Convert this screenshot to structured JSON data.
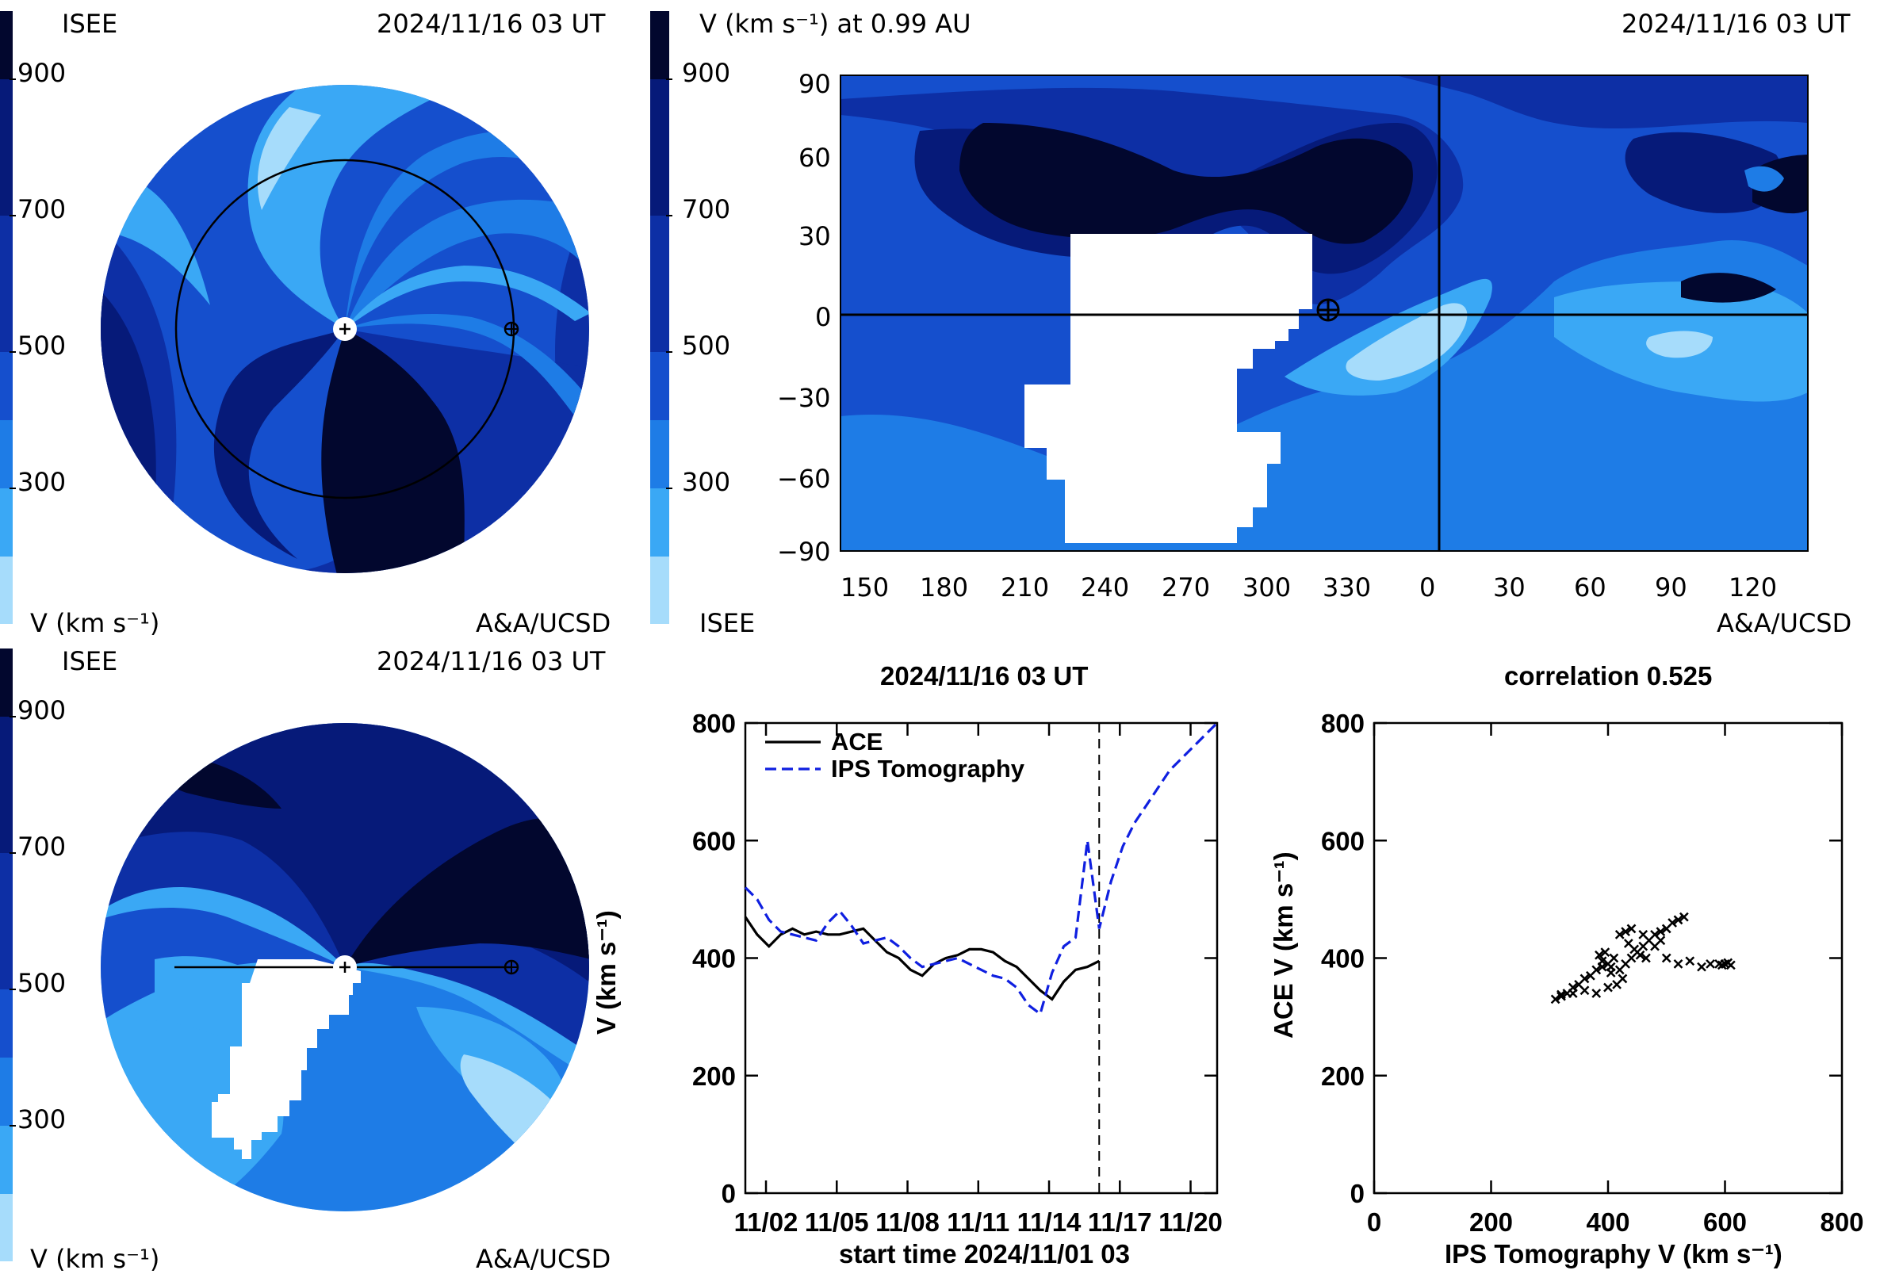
{
  "colors": {
    "v100": "#a6dcfb",
    "v300": "#3aa8f5",
    "v400": "#1e7ce6",
    "v500": "#154fcd",
    "v600": "#0d2fa5",
    "v700": "#061a79",
    "v900": "#02072e"
  },
  "panel_top_left": {
    "org": "ISEE",
    "timestamp": "2024/11/16 03 UT",
    "colorbar_ticks": [
      "900",
      "700",
      "500",
      "300"
    ],
    "unit_label": "V (km s⁻¹)",
    "credit": "A&A/UCSD"
  },
  "panel_top_right": {
    "title": "V (km s⁻¹) at 0.99 AU",
    "timestamp": "2024/11/16 03 UT",
    "colorbar_ticks": [
      "900",
      "700",
      "500",
      "300"
    ],
    "org": "ISEE",
    "credit": "A&A/UCSD",
    "y_ticks": [
      "90",
      "60",
      "30",
      "0",
      "−30",
      "−60",
      "−90"
    ],
    "x_ticks": [
      "150",
      "180",
      "210",
      "240",
      "270",
      "300",
      "330",
      "0",
      "30",
      "60",
      "90",
      "120"
    ]
  },
  "panel_bottom_left": {
    "org": "ISEE",
    "timestamp": "2024/11/16 03 UT",
    "colorbar_ticks": [
      "900",
      "700",
      "500",
      "300"
    ],
    "unit_label": "V (km s⁻¹)",
    "credit": "A&A/UCSD"
  },
  "chart_data": [
    {
      "type": "line",
      "title": "2024/11/16 03 UT",
      "xlabel": "start time 2024/11/01 03",
      "ylabel": "V (km s⁻¹)",
      "ylim": [
        0,
        800
      ],
      "xlim": [
        "11/01 03",
        "11/21 03"
      ],
      "x_ticks": [
        "11/02",
        "11/05",
        "11/08",
        "11/11",
        "11/14",
        "11/17",
        "11/20"
      ],
      "y_ticks": [
        "0",
        "200",
        "400",
        "600",
        "800"
      ],
      "current_time_marker": "11/16 03",
      "legend": "top-left",
      "series": [
        {
          "name": "ACE",
          "style": "solid",
          "color": "#000000",
          "x": [
            "11/01 03",
            "11/01 15",
            "11/02 03",
            "11/02 15",
            "11/03 03",
            "11/03 15",
            "11/04 03",
            "11/04 15",
            "11/05 03",
            "11/05 15",
            "11/06 03",
            "11/06 15",
            "11/07 03",
            "11/07 15",
            "11/08 03",
            "11/08 15",
            "11/09 03",
            "11/09 15",
            "11/10 03",
            "11/10 15",
            "11/11 03",
            "11/11 15",
            "11/12 03",
            "11/12 15",
            "11/13 03",
            "11/13 15",
            "11/14 03",
            "11/14 15",
            "11/15 03",
            "11/15 15",
            "11/16 03"
          ],
          "y": [
            470,
            440,
            420,
            440,
            450,
            440,
            445,
            440,
            440,
            445,
            450,
            430,
            410,
            400,
            380,
            370,
            390,
            400,
            405,
            415,
            415,
            410,
            395,
            385,
            365,
            345,
            330,
            360,
            380,
            385,
            395
          ]
        },
        {
          "name": "IPS Tomography",
          "style": "dashed",
          "color": "#0f1fe0",
          "x": [
            "11/01 03",
            "11/01 15",
            "11/02 03",
            "11/02 15",
            "11/03 03",
            "11/03 15",
            "11/04 03",
            "11/04 15",
            "11/05 03",
            "11/05 15",
            "11/06 03",
            "11/06 15",
            "11/07 03",
            "11/07 15",
            "11/08 03",
            "11/08 15",
            "11/09 03",
            "11/09 15",
            "11/10 03",
            "11/10 15",
            "11/11 03",
            "11/11 15",
            "11/12 03",
            "11/12 15",
            "11/13 03",
            "11/13 15",
            "11/14 03",
            "11/14 15",
            "11/15 03",
            "11/15 15",
            "11/16 03",
            "11/16 15",
            "11/17 03",
            "11/17 15",
            "11/18 03",
            "11/18 15",
            "11/19 03",
            "11/19 15",
            "11/20 03",
            "11/20 15",
            "11/21 03"
          ],
          "y": [
            520,
            500,
            465,
            445,
            440,
            435,
            430,
            460,
            480,
            455,
            425,
            430,
            435,
            420,
            400,
            385,
            390,
            395,
            400,
            390,
            380,
            370,
            365,
            350,
            320,
            305,
            375,
            420,
            435,
            600,
            450,
            530,
            590,
            630,
            660,
            690,
            720,
            740,
            760,
            780,
            800
          ]
        }
      ]
    },
    {
      "type": "scatter",
      "title": "correlation 0.525",
      "xlabel": "IPS Tomography V (km s⁻¹)",
      "ylabel": "ACE V (km s⁻¹)",
      "xlim": [
        0,
        800
      ],
      "ylim": [
        0,
        800
      ],
      "x_ticks": [
        "0",
        "200",
        "400",
        "600",
        "800"
      ],
      "y_ticks": [
        "0",
        "200",
        "400",
        "600",
        "800"
      ],
      "points": [
        [
          310,
          330
        ],
        [
          320,
          335
        ],
        [
          330,
          340
        ],
        [
          340,
          350
        ],
        [
          350,
          355
        ],
        [
          360,
          365
        ],
        [
          370,
          370
        ],
        [
          380,
          380
        ],
        [
          390,
          385
        ],
        [
          400,
          390
        ],
        [
          410,
          400
        ],
        [
          395,
          410
        ],
        [
          385,
          405
        ],
        [
          390,
          395
        ],
        [
          405,
          385
        ],
        [
          420,
          380
        ],
        [
          430,
          390
        ],
        [
          440,
          400
        ],
        [
          450,
          410
        ],
        [
          460,
          420
        ],
        [
          470,
          430
        ],
        [
          480,
          440
        ],
        [
          490,
          445
        ],
        [
          500,
          450
        ],
        [
          510,
          460
        ],
        [
          520,
          465
        ],
        [
          530,
          470
        ],
        [
          460,
          440
        ],
        [
          440,
          450
        ],
        [
          430,
          445
        ],
        [
          420,
          440
        ],
        [
          435,
          425
        ],
        [
          445,
          415
        ],
        [
          455,
          405
        ],
        [
          465,
          400
        ],
        [
          480,
          420
        ],
        [
          490,
          430
        ],
        [
          500,
          400
        ],
        [
          520,
          390
        ],
        [
          540,
          395
        ],
        [
          560,
          385
        ],
        [
          575,
          390
        ],
        [
          590,
          390
        ],
        [
          600,
          390
        ],
        [
          610,
          388
        ],
        [
          605,
          392
        ],
        [
          595,
          388
        ],
        [
          400,
          350
        ],
        [
          380,
          340
        ],
        [
          360,
          345
        ],
        [
          340,
          340
        ],
        [
          320,
          338
        ],
        [
          415,
          355
        ],
        [
          425,
          365
        ],
        [
          405,
          375
        ]
      ]
    }
  ]
}
